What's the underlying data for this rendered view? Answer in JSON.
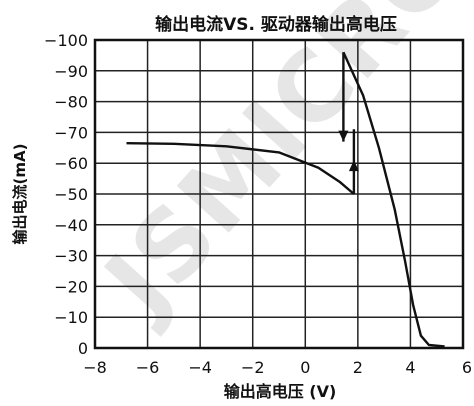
{
  "chart_data": {
    "type": "line",
    "title": "输出电流VS. 驱动器输出高电压",
    "xlabel": "输出高电压 (V)",
    "ylabel": "输出电流(mA)",
    "xlim": [
      -8,
      6
    ],
    "ylim": [
      -100,
      0
    ],
    "x_ticks": [
      -8,
      -6,
      -4,
      -2,
      0,
      2,
      4,
      6
    ],
    "y_ticks": [
      -100,
      -90,
      -80,
      -70,
      -60,
      -50,
      -40,
      -30,
      -20,
      -10,
      0
    ],
    "x_tick_labels": [
      "−8",
      "−6",
      "−4",
      "−2",
      "0",
      "2",
      "4",
      "6"
    ],
    "y_tick_labels": [
      "−100",
      "−90",
      "−80",
      "−70",
      "−60",
      "−50",
      "−40",
      "−30",
      "−20",
      "−10",
      "0"
    ],
    "grid": true,
    "watermark": "JSMICRO",
    "series": [
      {
        "segments": [
          [
            [
              -6.8,
              -66.5
            ],
            [
              -5,
              -66.3
            ],
            [
              -3,
              -65.5
            ],
            [
              -1,
              -63.5
            ],
            [
              0.5,
              -58.5
            ],
            [
              1.3,
              -54
            ],
            [
              1.85,
              -50
            ]
          ],
          [
            [
              1.85,
              -50
            ],
            [
              1.85,
              -71
            ]
          ],
          [
            [
              1.45,
              -96
            ],
            [
              2.2,
              -82
            ],
            [
              2.8,
              -65
            ],
            [
              3.4,
              -45
            ],
            [
              3.8,
              -28
            ],
            [
              4.1,
              -14
            ],
            [
              4.4,
              -4
            ],
            [
              4.7,
              -1
            ],
            [
              5.3,
              -0.5
            ]
          ],
          [
            [
              1.45,
              -96
            ],
            [
              1.45,
              -67
            ]
          ]
        ]
      }
    ],
    "arrows": [
      {
        "x": 1.45,
        "y": -67,
        "direction": "down"
      },
      {
        "x": 1.85,
        "y": -61,
        "direction": "up"
      }
    ]
  }
}
